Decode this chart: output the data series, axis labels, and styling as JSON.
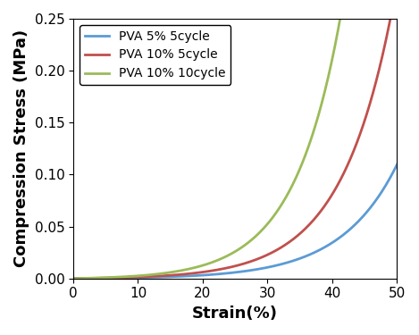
{
  "title": "",
  "xlabel": "Strain(%)",
  "ylabel": "Compression Stress (MPa)",
  "xlim": [
    0,
    50
  ],
  "ylim": [
    0,
    0.25
  ],
  "xticks": [
    0,
    10,
    20,
    30,
    40,
    50
  ],
  "yticks": [
    0,
    0.05,
    0.1,
    0.15,
    0.2,
    0.25
  ],
  "series": [
    {
      "label": "PVA 5% 5cycle",
      "color": "#5B9BD5",
      "A": 0.00035,
      "k": 0.115
    },
    {
      "label": "PVA 10% 5cycle",
      "color": "#C0504D",
      "A": 0.00055,
      "k": 0.125
    },
    {
      "label": "PVA 10% 10cycle",
      "color": "#9BBB59",
      "A": 0.00085,
      "k": 0.138
    }
  ],
  "legend_loc": "upper left",
  "legend_fontsize": 10,
  "axis_label_fontsize": 13,
  "tick_fontsize": 11,
  "linewidth": 2.0,
  "background_color": "#ffffff"
}
